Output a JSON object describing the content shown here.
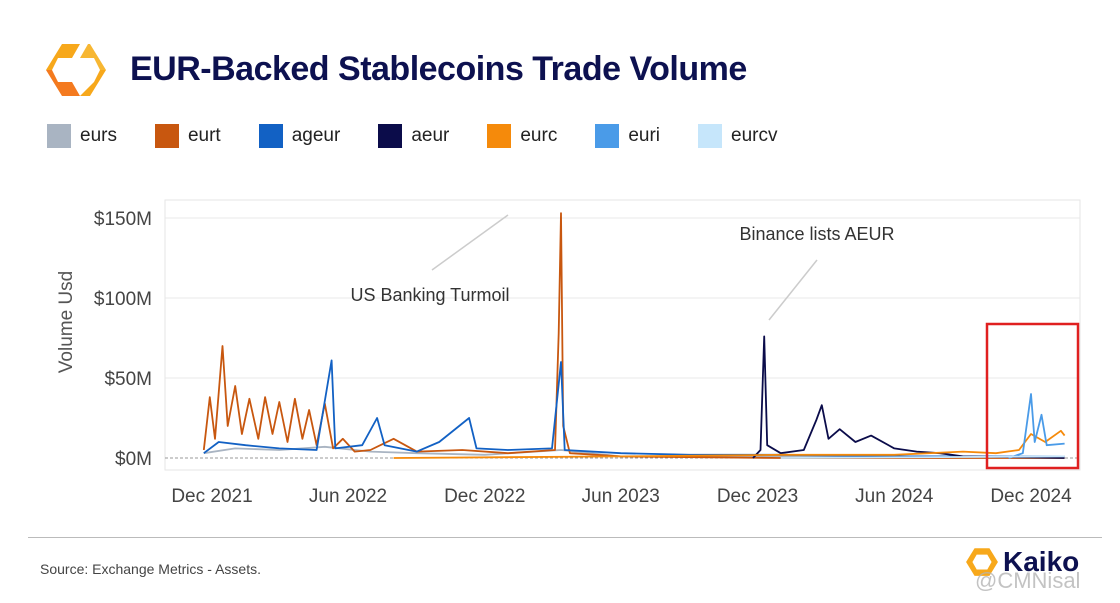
{
  "header": {
    "title": "EUR-Backed Stablecoins Trade Volume",
    "logo": "kaiko-hexagon-logo"
  },
  "footer": {
    "source": "Source: Exchange Metrics - Assets.",
    "brand": "Kaiko",
    "watermark": "@CMNisal"
  },
  "chart_data": {
    "type": "line",
    "title": "EUR-Backed Stablecoins Trade Volume",
    "ylabel": "Volume Usd",
    "xlabel": "",
    "ylim": [
      0,
      155
    ],
    "y_ticks": [
      {
        "v": 0,
        "label": "$0M"
      },
      {
        "v": 50,
        "label": "$50M"
      },
      {
        "v": 100,
        "label": "$100M"
      },
      {
        "v": 150,
        "label": "$150M"
      }
    ],
    "x_ticks": [
      {
        "d": "2021-12-01",
        "label": "Dec 2021"
      },
      {
        "d": "2022-06-01",
        "label": "Jun 2022"
      },
      {
        "d": "2022-12-01",
        "label": "Dec 2022"
      },
      {
        "d": "2023-06-01",
        "label": "Jun 2023"
      },
      {
        "d": "2023-12-01",
        "label": "Dec 2023"
      },
      {
        "d": "2024-06-01",
        "label": "Jun 2024"
      },
      {
        "d": "2024-12-01",
        "label": "Dec 2024"
      }
    ],
    "grid": true,
    "legend_position": "top",
    "annotations": [
      {
        "text": "US Banking Turmoil",
        "d": "2023-03-13"
      },
      {
        "text": "Binance lists AEUR",
        "d": "2023-12-10"
      }
    ],
    "highlight_box": {
      "from": "2024-10-15",
      "to": "2025-01-31",
      "color": "#e02020"
    },
    "series": [
      {
        "name": "eurs",
        "color": "#a9b4c2",
        "points": [
          [
            "2021-11-20",
            3
          ],
          [
            "2022-01-01",
            6
          ],
          [
            "2022-03-01",
            5
          ],
          [
            "2022-05-01",
            7
          ],
          [
            "2022-07-01",
            4
          ],
          [
            "2022-09-01",
            3
          ],
          [
            "2022-12-01",
            2
          ],
          [
            "2023-03-13",
            5
          ],
          [
            "2023-06-01",
            1
          ],
          [
            "2024-01-01",
            1
          ],
          [
            "2025-01-15",
            1
          ]
        ]
      },
      {
        "name": "eurt",
        "color": "#c8570f",
        "points": [
          [
            "2021-11-20",
            5
          ],
          [
            "2021-11-28",
            38
          ],
          [
            "2021-12-05",
            12
          ],
          [
            "2021-12-15",
            70
          ],
          [
            "2021-12-22",
            20
          ],
          [
            "2022-01-01",
            45
          ],
          [
            "2022-01-10",
            15
          ],
          [
            "2022-01-20",
            37
          ],
          [
            "2022-02-01",
            12
          ],
          [
            "2022-02-10",
            38
          ],
          [
            "2022-02-20",
            15
          ],
          [
            "2022-03-01",
            35
          ],
          [
            "2022-03-12",
            10
          ],
          [
            "2022-03-22",
            37
          ],
          [
            "2022-04-01",
            12
          ],
          [
            "2022-04-10",
            30
          ],
          [
            "2022-04-20",
            8
          ],
          [
            "2022-05-01",
            34
          ],
          [
            "2022-05-12",
            6
          ],
          [
            "2022-05-25",
            12
          ],
          [
            "2022-06-10",
            4
          ],
          [
            "2022-07-01",
            5
          ],
          [
            "2022-08-01",
            12
          ],
          [
            "2022-09-01",
            4
          ],
          [
            "2022-11-01",
            5
          ],
          [
            "2023-01-01",
            3
          ],
          [
            "2023-03-05",
            5
          ],
          [
            "2023-03-10",
            78
          ],
          [
            "2023-03-13",
            153
          ],
          [
            "2023-03-16",
            20
          ],
          [
            "2023-03-25",
            3
          ],
          [
            "2023-06-01",
            1
          ],
          [
            "2024-01-01",
            0
          ],
          [
            "2025-01-15",
            0
          ]
        ]
      },
      {
        "name": "ageur",
        "color": "#1261c4",
        "points": [
          [
            "2021-11-20",
            3
          ],
          [
            "2021-12-10",
            10
          ],
          [
            "2022-01-15",
            8
          ],
          [
            "2022-03-01",
            6
          ],
          [
            "2022-04-20",
            5
          ],
          [
            "2022-05-10",
            61
          ],
          [
            "2022-05-15",
            6
          ],
          [
            "2022-06-20",
            8
          ],
          [
            "2022-07-10",
            25
          ],
          [
            "2022-07-20",
            8
          ],
          [
            "2022-09-01",
            4
          ],
          [
            "2022-10-01",
            10
          ],
          [
            "2022-11-10",
            25
          ],
          [
            "2022-11-20",
            6
          ],
          [
            "2023-01-01",
            5
          ],
          [
            "2023-03-01",
            6
          ],
          [
            "2023-03-13",
            60
          ],
          [
            "2023-03-18",
            5
          ],
          [
            "2023-06-01",
            3
          ],
          [
            "2023-09-01",
            2
          ],
          [
            "2024-01-01",
            2
          ],
          [
            "2024-06-01",
            1
          ],
          [
            "2025-01-15",
            1
          ]
        ]
      },
      {
        "name": "aeur",
        "color": "#0b0c4a",
        "points": [
          [
            "2023-11-25",
            0
          ],
          [
            "2023-12-05",
            5
          ],
          [
            "2023-12-10",
            76
          ],
          [
            "2023-12-14",
            8
          ],
          [
            "2024-01-01",
            3
          ],
          [
            "2024-02-01",
            5
          ],
          [
            "2024-02-18",
            24
          ],
          [
            "2024-02-25",
            33
          ],
          [
            "2024-03-05",
            12
          ],
          [
            "2024-03-20",
            18
          ],
          [
            "2024-04-10",
            10
          ],
          [
            "2024-05-01",
            14
          ],
          [
            "2024-06-01",
            6
          ],
          [
            "2024-07-01",
            4
          ],
          [
            "2024-08-01",
            3
          ],
          [
            "2024-09-01",
            1
          ],
          [
            "2025-01-15",
            0
          ]
        ]
      },
      {
        "name": "eurc",
        "color": "#f58a0b",
        "points": [
          [
            "2022-08-01",
            0
          ],
          [
            "2023-06-01",
            1
          ],
          [
            "2024-01-01",
            2
          ],
          [
            "2024-06-01",
            2
          ],
          [
            "2024-09-01",
            4
          ],
          [
            "2024-10-15",
            3
          ],
          [
            "2024-11-15",
            5
          ],
          [
            "2024-12-01",
            15
          ],
          [
            "2024-12-20",
            10
          ],
          [
            "2025-01-10",
            17
          ],
          [
            "2025-01-15",
            14
          ]
        ]
      },
      {
        "name": "euri",
        "color": "#4a9be8",
        "points": [
          [
            "2024-11-01",
            0
          ],
          [
            "2024-11-20",
            3
          ],
          [
            "2024-12-01",
            40
          ],
          [
            "2024-12-06",
            10
          ],
          [
            "2024-12-15",
            27
          ],
          [
            "2024-12-22",
            8
          ],
          [
            "2025-01-15",
            9
          ]
        ]
      },
      {
        "name": "eurcv",
        "color": "#c6e6fb",
        "points": [
          [
            "2024-01-01",
            0
          ],
          [
            "2025-01-15",
            1
          ]
        ]
      }
    ]
  }
}
